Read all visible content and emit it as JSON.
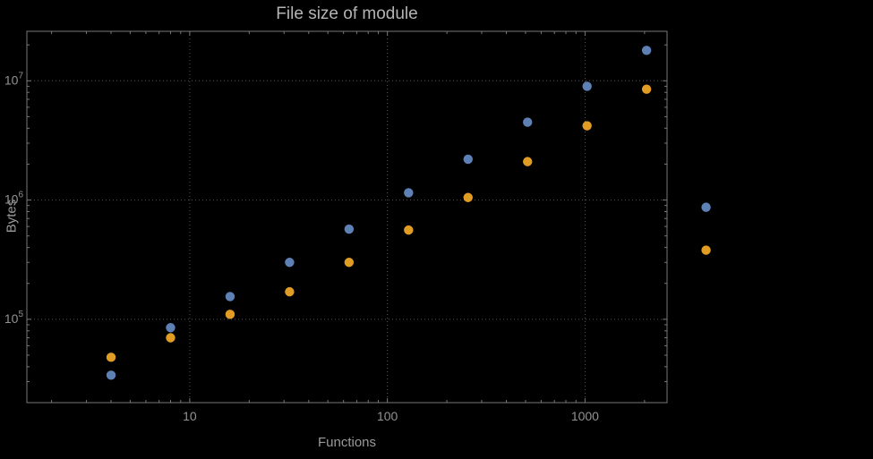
{
  "chart_data": {
    "type": "scatter",
    "title": "File size of module",
    "xlabel": "Functions",
    "ylabel": "Bytes",
    "xscale": "log",
    "yscale": "log",
    "xlim": [
      1.5,
      2600
    ],
    "ylim": [
      20000,
      26000000
    ],
    "grid": "dotted",
    "legend": "none",
    "x": [
      4,
      8,
      16,
      32,
      64,
      128,
      256,
      512,
      1024,
      2048,
      4096
    ],
    "series": [
      {
        "name": "series-blue",
        "color": "#5e81b5",
        "values": [
          34000,
          85000,
          155000,
          300000,
          570000,
          1150000,
          2200000,
          4500000,
          9000000,
          18000000,
          870000
        ]
      },
      {
        "name": "series-orange",
        "color": "#e19c24",
        "values": [
          48000,
          70000,
          110000,
          170000,
          300000,
          560000,
          1050000,
          2100000,
          4200000,
          8500000,
          380000
        ]
      }
    ],
    "xticks": {
      "major": [
        10,
        100,
        1000
      ],
      "labels": [
        "10",
        "100",
        "1000"
      ]
    },
    "yticks": {
      "major": [
        100000,
        1000000,
        10000000
      ],
      "labels": [
        {
          "base": "10",
          "exp": "5"
        },
        {
          "base": "10",
          "exp": "6"
        },
        {
          "base": "10",
          "exp": "7"
        }
      ]
    }
  }
}
